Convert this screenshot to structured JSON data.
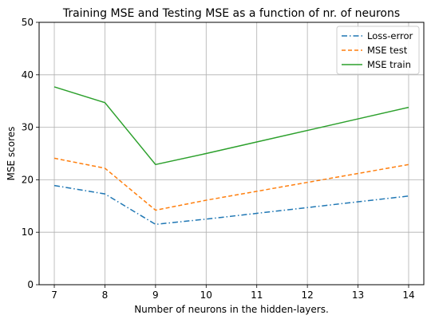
{
  "chart_data": {
    "type": "line",
    "title": "Training MSE and Testing MSE as a function of nr. of neurons",
    "xlabel": "Number of neurons in the hidden-layers.",
    "ylabel": "MSE scores",
    "x": [
      7,
      8,
      9,
      10,
      11,
      12,
      13,
      14
    ],
    "xlim": [
      6.7,
      14.3
    ],
    "ylim": [
      0,
      50
    ],
    "xticks": [
      7,
      8,
      9,
      10,
      11,
      12,
      13,
      14
    ],
    "yticks": [
      0,
      10,
      20,
      30,
      40,
      50
    ],
    "grid": true,
    "legend_position": "top-right",
    "series": [
      {
        "name": "Loss-error",
        "color": "#1f77b4",
        "linestyle": "dashdot",
        "values": [
          18.9,
          17.3,
          11.5,
          12.5,
          13.6,
          14.7,
          15.8,
          16.9
        ]
      },
      {
        "name": "MSE test",
        "color": "#ff7f0e",
        "linestyle": "dashed",
        "values": [
          24.1,
          22.2,
          14.2,
          16.1,
          17.8,
          19.5,
          21.2,
          22.9
        ]
      },
      {
        "name": "MSE train",
        "color": "#2ca02c",
        "linestyle": "solid",
        "values": [
          37.7,
          34.7,
          22.9,
          25.0,
          27.2,
          29.4,
          31.6,
          33.8
        ]
      }
    ]
  }
}
